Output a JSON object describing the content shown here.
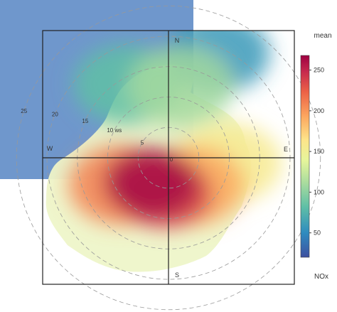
{
  "chart_data": {
    "type": "heatmap",
    "subtype": "polar plot",
    "wind_speed_rings": [
      {
        "label": "5",
        "radius": 5
      },
      {
        "label": "10 ws",
        "radius": 10
      },
      {
        "label": "15",
        "radius": 15
      },
      {
        "label": "20",
        "radius": 20
      },
      {
        "label": "25",
        "radius": 25
      }
    ],
    "radius_max": 30,
    "directions": [
      "N",
      "E",
      "S",
      "W"
    ],
    "center_label": "0",
    "colorbar": {
      "title": "mean",
      "pollutant": "NOx",
      "min": 20,
      "max": 268,
      "ticks": [
        50,
        100,
        150,
        200,
        250
      ],
      "palette": [
        "#3e50a0",
        "#2e8bbf",
        "#5fbfa6",
        "#aadc9e",
        "#e6f59b",
        "#fde58a",
        "#fca65f",
        "#ec6146",
        "#c62a4e",
        "#9e0142"
      ]
    },
    "concentration_field": {
      "blobs": [
        {
          "label": "peak south-southwest",
          "direction_deg": 215,
          "ws": 5,
          "mean": 262
        },
        {
          "label": "south",
          "direction_deg": 185,
          "ws": 6,
          "mean": 230
        },
        {
          "label": "southwest",
          "direction_deg": 240,
          "ws": 9,
          "mean": 200
        },
        {
          "label": "southeast",
          "direction_deg": 140,
          "ws": 6,
          "mean": 185
        },
        {
          "label": "east band",
          "direction_deg": 95,
          "ws": 10,
          "mean": 150
        },
        {
          "label": "north",
          "direction_deg": 10,
          "ws": 12,
          "mean": 100
        },
        {
          "label": "northwest",
          "direction_deg": 330,
          "ws": 14,
          "mean": 75
        },
        {
          "label": "north-northeast",
          "direction_deg": 25,
          "ws": 19,
          "mean": 55
        }
      ],
      "background_mean": 105
    }
  }
}
